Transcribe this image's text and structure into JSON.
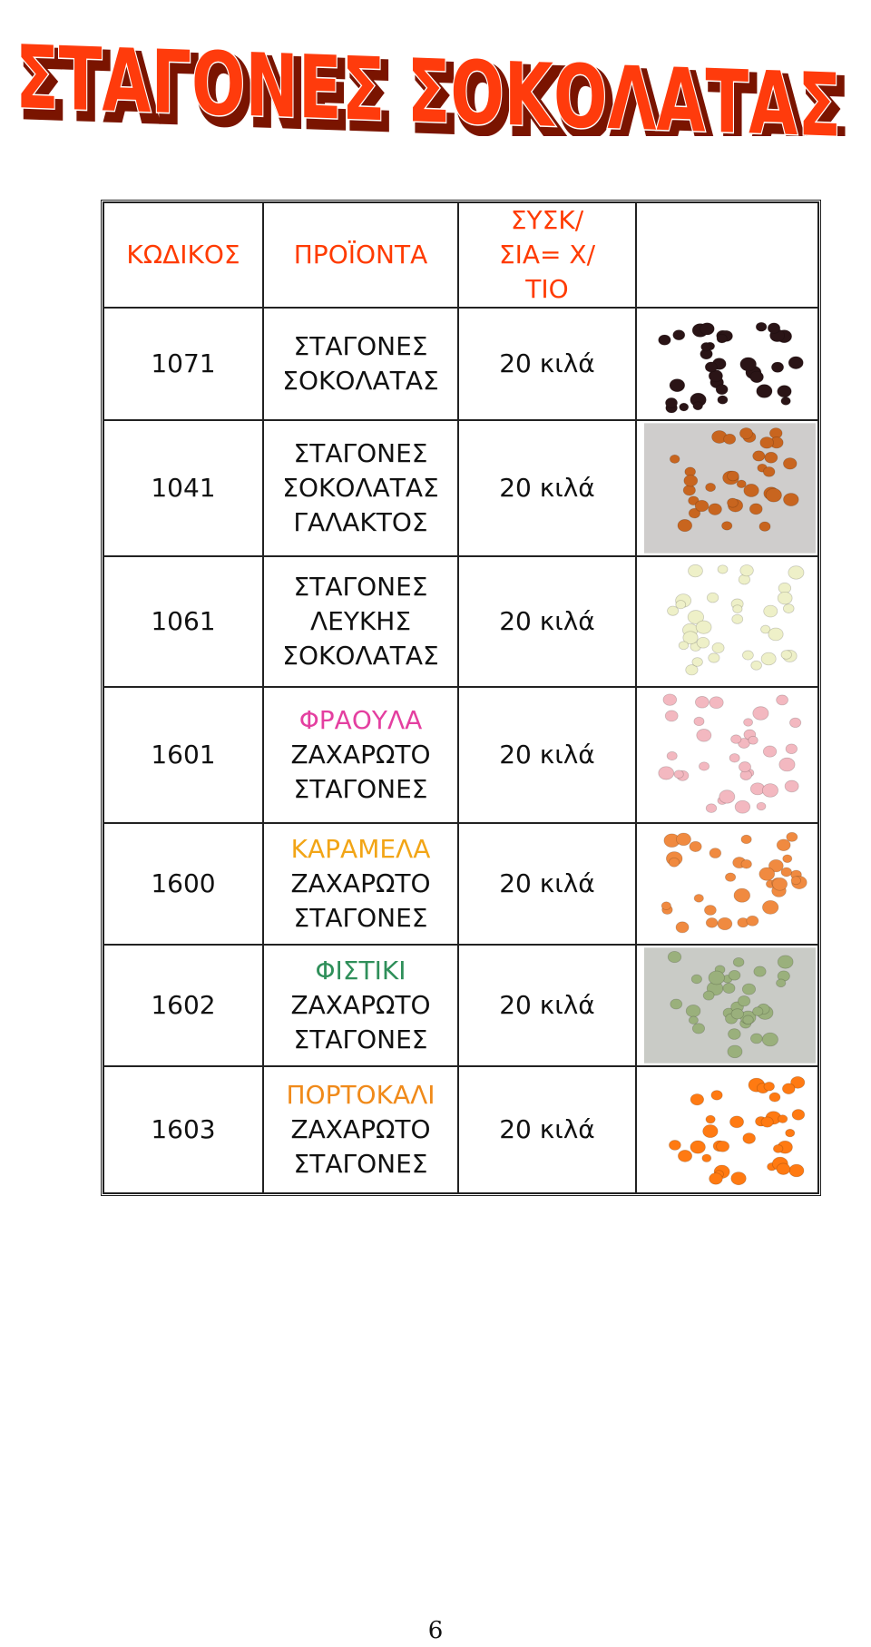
{
  "title": "ΣΤΑΓΟΝΕΣ ΣΟΚΟΛΑΤΑΣ",
  "colors": {
    "title_fill": "#ff3b0c",
    "header_text": "#ff3b00"
  },
  "table": {
    "headers": {
      "code": "ΚΩΔΙΚΟΣ",
      "products": "ΠΡΟΪΟΝΤΑ",
      "package": "ΣΥΣΚ/ΣΙΑ= Χ/ΤΙΟ",
      "photo": ""
    },
    "rows": [
      {
        "code": "1071",
        "name1": "ΣΤΑΓΟΝΕΣ",
        "name2": "ΣΟΚΟΛΑΤΑΣ",
        "name3": "",
        "package": "20 κιλά",
        "icon": "dark-chocolate-drops-photo",
        "drop_color": "#2a1416",
        "bg": "#ffffff",
        "name_color": "#111111"
      },
      {
        "code": "1041",
        "name1": "ΣΤΑΓΟΝΕΣ",
        "name2": "ΣΟΚΟΛΑΤΑΣ",
        "name3": "ΓΑΛΑΚΤΟΣ",
        "package": "20 κιλά",
        "icon": "milk-chocolate-drops-photo",
        "drop_color": "#c8651f",
        "bg": "#cfcdcc",
        "name_color": "#111111"
      },
      {
        "code": "1061",
        "name1": "ΣΤΑΓΟΝΕΣ",
        "name2": "ΛΕΥΚΗΣ",
        "name3": "ΣΟΚΟΛΑΤΑΣ",
        "package": "20 κιλά",
        "icon": "white-chocolate-drops-photo",
        "drop_color": "#eef0c8",
        "bg": "#ffffff",
        "name_color": "#111111"
      },
      {
        "code": "1601",
        "name1": "ΦΡΑΟΥΛΑ",
        "name2": "ΖΑΧΑΡΩΤΟ",
        "name3": "ΣΤΑΓΟΝΕΣ",
        "package": "20 κιλά",
        "icon": "strawberry-drops-photo",
        "drop_color": "#f3b8c0",
        "bg": "#ffffff",
        "name_color": "#e43fa0"
      },
      {
        "code": "1600",
        "name1": "ΚΑΡΑΜΕΛΑ",
        "name2": "ΖΑΧΑΡΩΤΟ",
        "name3": "ΣΤΑΓΟΝΕΣ",
        "package": "20 κιλά",
        "icon": "caramel-drops-photo",
        "drop_color": "#f08a40",
        "bg": "#ffffff",
        "name_color": "#f2a516"
      },
      {
        "code": "1602",
        "name1": "ΦΙΣΤΙΚΙ",
        "name2": "ΖΑΧΑΡΩΤΟ",
        "name3": "ΣΤΑΓΟΝΕΣ",
        "package": "20 κιλά",
        "icon": "pistachio-drops-photo",
        "drop_color": "#9ab07c",
        "bg": "#c9cbc6",
        "name_color": "#2f8f5a"
      },
      {
        "code": "1603",
        "name1": "ΠΟΡΤΟΚΑΛΙ",
        "name2": "ΖΑΧΑΡΩΤΟ",
        "name3": "ΣΤΑΓΟΝΕΣ",
        "package": "20 κιλά",
        "icon": "orange-drops-photo",
        "drop_color": "#ff7a12",
        "bg": "#ffffff",
        "name_color": "#f08a1a"
      }
    ]
  },
  "page_number": "6"
}
